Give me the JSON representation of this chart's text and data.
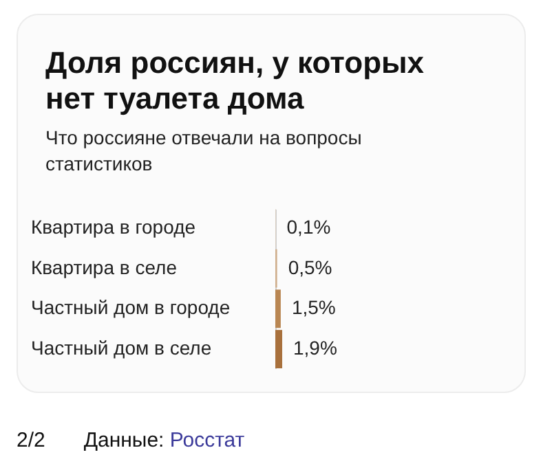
{
  "chart_data": {
    "type": "bar",
    "orientation": "horizontal",
    "title": "Доля россиян, у которых нет туалета дома",
    "subtitle": "Что россияне отвечали на вопросы статистиков",
    "categories": [
      "Квартира в городе",
      "Квартира в селе",
      "Частный дом в городе",
      "Частный дом в селе"
    ],
    "values": [
      0.1,
      0.5,
      1.5,
      1.9
    ],
    "colors": [
      "#e0cdb8",
      "#cfae8c",
      "#b98652",
      "#a8703c"
    ],
    "value_labels": [
      "0,1%",
      "0,5%",
      "1,5%",
      "1,9%"
    ],
    "tick_labels": "y",
    "grid": false,
    "annotations": [
      "2/2",
      "Данные: Росстат"
    ]
  }
}
